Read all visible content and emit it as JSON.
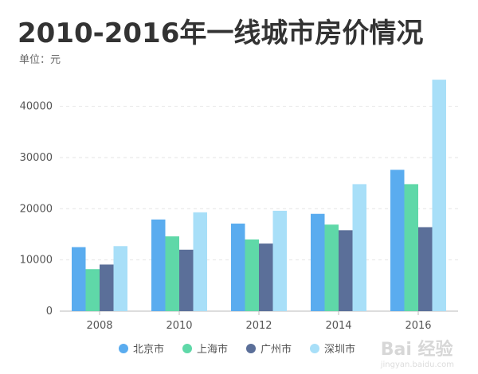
{
  "header": {
    "title": "2010-2016年一线城市房价情况",
    "unit": "单位：元"
  },
  "watermark": {
    "text": "Bai 经验",
    "sub": "jingyan.baidu.com"
  },
  "colors": {
    "series": [
      "#5aacef",
      "#5fd8a8",
      "#5b6f99",
      "#a8dff8"
    ],
    "grid": "#e6e6e6",
    "axis": "#bbbbbb"
  },
  "chart_data": {
    "type": "bar",
    "title": "2010-2016年一线城市房价情况",
    "subtitle": "单位：元",
    "categories": [
      "2008",
      "2010",
      "2012",
      "2014",
      "2016"
    ],
    "series": [
      {
        "name": "北京市",
        "values": [
          12500,
          17900,
          17100,
          19000,
          27600
        ]
      },
      {
        "name": "上海市",
        "values": [
          8200,
          14600,
          14000,
          16900,
          24800
        ]
      },
      {
        "name": "广州市",
        "values": [
          9100,
          12000,
          13200,
          15800,
          16400
        ]
      },
      {
        "name": "深圳市",
        "values": [
          12700,
          19300,
          19600,
          24800,
          45200
        ]
      }
    ],
    "yticks": [
      0,
      10000,
      20000,
      30000,
      40000
    ],
    "ylim": [
      0,
      46000
    ],
    "grid": true,
    "legend_position": "bottom"
  }
}
